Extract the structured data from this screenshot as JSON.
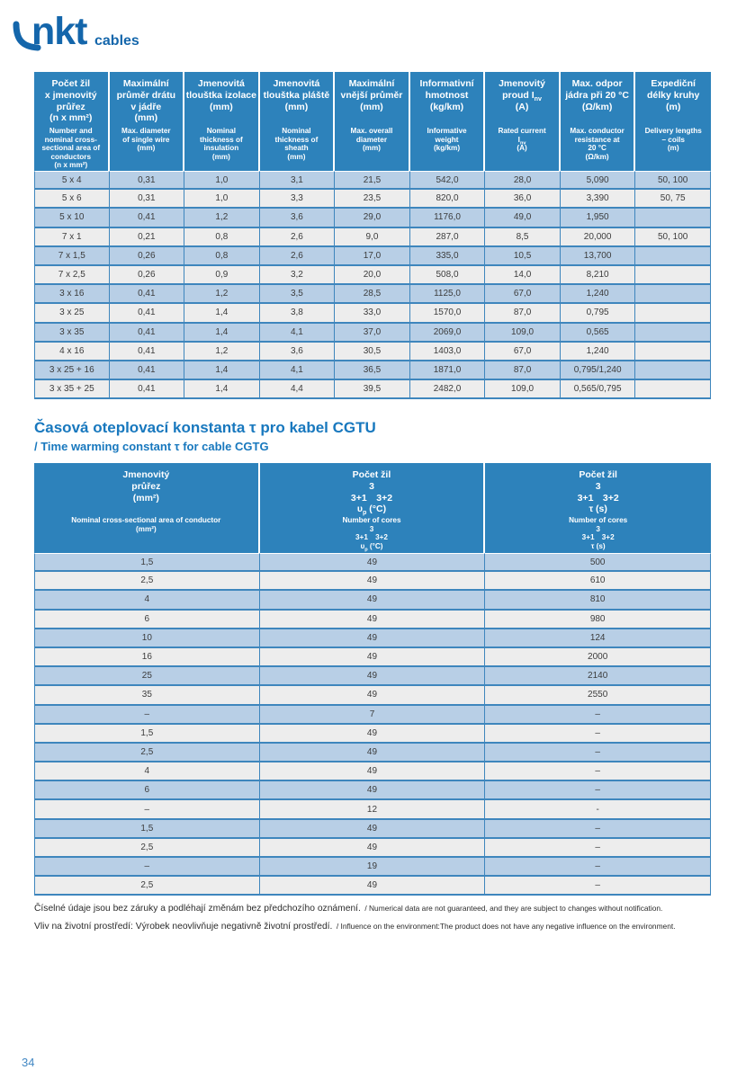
{
  "logo": {
    "brand": "nkt",
    "suffix": "cables",
    "color": "#1466ab"
  },
  "colors": {
    "header_blue": "#2d82bb",
    "row_blue": "#b8cfe6",
    "row_gray": "#ededed",
    "border_blue": "#3e86bd",
    "heading_blue": "#1878be"
  },
  "table1": {
    "columns": [
      {
        "cz": "Počet žil\nx jmenovitý\nprůřez\n(n x mm²)",
        "en": "Number and\nnominal cross-\nsectional area of\nconductors\n(n x mm²)"
      },
      {
        "cz": "Maximální\nprůměr drátu\nv jádře\n(mm)",
        "en": "Max. diameter\nof single wire\n(mm)"
      },
      {
        "cz": "Jmenovitá\ntlouštka izolace\n(mm)",
        "en": "Nominal\nthickness of\ninsulation\n(mm)"
      },
      {
        "cz": "Jmenovitá\ntlouštka pláště\n(mm)",
        "en": "Nominal\nthickness of\nsheath\n(mm)"
      },
      {
        "cz": "Maximální\nvnější průměr\n(mm)",
        "en": "Max. overall\ndiameter\n(mm)"
      },
      {
        "cz": "Informativní\nhmotnost\n(kg/km)",
        "en": "Informative\nweight\n(kg/km)"
      },
      {
        "cz_pre": "Jmenovitý\nproud I",
        "cz_sub": "nv",
        "cz_post": "\n(A)",
        "en_pre": "Rated current\nI",
        "en_sub": "nv",
        "en_post": "\n(A)"
      },
      {
        "cz": "Max. odpor\njádra při 20 °C\n(Ω/km)",
        "en": "Max. conductor\nresistance at\n20 °C\n(Ω/km)"
      },
      {
        "cz": "Expediční\ndélky kruhy\n(m)",
        "en": "Delivery lengths\n– coils\n(m)"
      }
    ],
    "rows": [
      [
        "5 x 4",
        "0,31",
        "1,0",
        "3,1",
        "21,5",
        "542,0",
        "28,0",
        "5,090",
        "50, 100"
      ],
      [
        "5 x 6",
        "0,31",
        "1,0",
        "3,3",
        "23,5",
        "820,0",
        "36,0",
        "3,390",
        "50, 75"
      ],
      [
        "5 x 10",
        "0,41",
        "1,2",
        "3,6",
        "29,0",
        "1176,0",
        "49,0",
        "1,950",
        ""
      ],
      [
        "7 x 1",
        "0,21",
        "0,8",
        "2,6",
        "9,0",
        "287,0",
        "8,5",
        "20,000",
        "50, 100"
      ],
      [
        "7 x 1,5",
        "0,26",
        "0,8",
        "2,6",
        "17,0",
        "335,0",
        "10,5",
        "13,700",
        ""
      ],
      [
        "7 x 2,5",
        "0,26",
        "0,9",
        "3,2",
        "20,0",
        "508,0",
        "14,0",
        "8,210",
        ""
      ],
      [
        "3 x 16",
        "0,41",
        "1,2",
        "3,5",
        "28,5",
        "1125,0",
        "67,0",
        "1,240",
        ""
      ],
      [
        "3 x 25",
        "0,41",
        "1,4",
        "3,8",
        "33,0",
        "1570,0",
        "87,0",
        "0,795",
        ""
      ],
      [
        "3 x 35",
        "0,41",
        "1,4",
        "4,1",
        "37,0",
        "2069,0",
        "109,0",
        "0,565",
        ""
      ],
      [
        "4 x 16",
        "0,41",
        "1,2",
        "3,6",
        "30,5",
        "1403,0",
        "67,0",
        "1,240",
        ""
      ],
      [
        "3 x 25 + 16",
        "0,41",
        "1,4",
        "4,1",
        "36,5",
        "1871,0",
        "87,0",
        "0,795/1,240",
        ""
      ],
      [
        "3 x 35 + 25",
        "0,41",
        "1,4",
        "4,4",
        "39,5",
        "2482,0",
        "109,0",
        "0,565/0,795",
        ""
      ]
    ]
  },
  "section": {
    "title_cz": "Časová oteplovací konstanta τ pro kabel CGTU",
    "title_en": "/ Time warming constant τ for cable CGTG"
  },
  "table2": {
    "columns": [
      {
        "cz": "Jmenovitý\nprůřez\n(mm²)",
        "en": "Nominal cross-sectional area of conductor\n(mm²)"
      },
      {
        "cz_pre": "Počet žil\n3\n3+1 3+2\nυ",
        "cz_sub": "p",
        "cz_post": " (°C)",
        "en_pre": "Number of cores\n3\n3+1 3+2\nυ",
        "en_sub": "p",
        "en_post": " (°C)"
      },
      {
        "cz": "Počet žil\n3\n3+1 3+2\nτ (s)",
        "en": "Number of cores\n3\n3+1 3+2\nτ (s)"
      }
    ],
    "rows": [
      [
        "1,5",
        "49",
        "500"
      ],
      [
        "2,5",
        "49",
        "610"
      ],
      [
        "4",
        "49",
        "810"
      ],
      [
        "6",
        "49",
        "980"
      ],
      [
        "10",
        "49",
        "124"
      ],
      [
        "16",
        "49",
        "2000"
      ],
      [
        "25",
        "49",
        "2140"
      ],
      [
        "35",
        "49",
        "2550"
      ],
      [
        "–",
        "7",
        "–"
      ],
      [
        "1,5",
        "49",
        "–"
      ],
      [
        "2,5",
        "49",
        "–"
      ],
      [
        "4",
        "49",
        "–"
      ],
      [
        "6",
        "49",
        "–"
      ],
      [
        "–",
        "12",
        "-"
      ],
      [
        "1,5",
        "49",
        "–"
      ],
      [
        "2,5",
        "49",
        "–"
      ],
      [
        "–",
        "19",
        "–"
      ],
      [
        "2,5",
        "49",
        "–"
      ]
    ]
  },
  "notes": [
    {
      "cz": "Číselné údaje jsou bez záruky a podléhají změnám bez předchozího oznámení.",
      "en": "/ Numerical data are not guaranteed, and they are subject to changes without notification."
    },
    {
      "cz": "Vliv na životní prostředí: Výrobek neovlivňuje negativně životní prostředí.",
      "en": "/ Influence on the environment:The product does not have any negative influence on the environment."
    }
  ],
  "page_number": "34"
}
